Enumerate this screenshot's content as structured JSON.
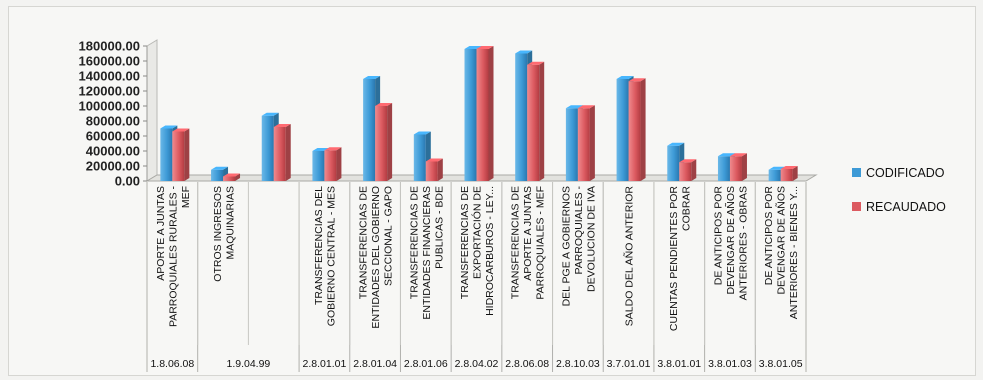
{
  "chart_data": {
    "type": "bar",
    "title": "",
    "xlabel": "",
    "ylabel": "",
    "ylim": [
      0,
      180000
    ],
    "yticks": [
      "0.00",
      "20000.00",
      "40000.00",
      "60000.00",
      "80000.00",
      "100000.00",
      "120000.00",
      "140000.00",
      "160000.00",
      "180000.00"
    ],
    "grid": false,
    "legend": "right",
    "categories": [
      "APORTE A JUNTAS PARROQUIALES RURALES - MEF",
      "OTROS INGRESOS MAQUINARIAS",
      "",
      "TRANSFERENCIAS DEL GOBIERNO CENTRAL - MES",
      "TRANSFERENCIAS DE ENTIDADES DEL GOBIERNO SECCIONAL - GAPO",
      "TRANSFERENCIAS DE ENTIDADES FINANCIERAS PUBLICAS - BDE",
      "TRANSFERENCIAS DE EXPORTACIÓN DE HIDROCARBUROS - LEY...",
      "TRANSFERENCIAS DE APORTE A JUNTAS PARROQUIALES - MEF",
      "DEL PGE A GOBIERNOS PARROQUIALES - DEVOLUCION DE IVA",
      "SALDO DEL AÑO ANTERIOR",
      "CUENTAS PENDIENTES POR COBRAR",
      "DE ANTICIPOS POR DEVENGAR DE AÑOS ANTERIORES - OBRAS",
      "DE ANTICIPOS POR DEVENGAR DE AÑOS ANTERIORES - BIENES Y..."
    ],
    "label_lines": [
      [
        "APORTE A JUNTAS",
        "PARROQUIALES RURALES -",
        "MEF"
      ],
      [
        "OTROS INGRESOS",
        "MAQUINARIAS"
      ],
      [],
      [
        "TRANSFERENCIAS DEL",
        "GOBIERNO CENTRAL - MES"
      ],
      [
        "TRANSFERENCIAS DE",
        "ENTIDADES DEL GOBIERNO",
        "SECCIONAL - GAPO"
      ],
      [
        "TRANSFERENCIAS DE",
        "ENTIDADES FINANCIERAS",
        "PUBLICAS - BDE"
      ],
      [
        "TRANSFERENCIAS DE",
        "EXPORTACIÓN DE",
        "HIDROCARBUROS - LEY..."
      ],
      [
        "TRANSFERENCIAS DE",
        "APORTE A JUNTAS",
        "PARROQUIALES - MEF"
      ],
      [
        "DEL PGE A GOBIERNOS",
        "PARROQUIALES -",
        "DEVOLUCION DE IVA"
      ],
      [
        "SALDO DEL AÑO ANTERIOR"
      ],
      [
        "CUENTAS PENDIENTES POR",
        "COBRAR"
      ],
      [
        "DE ANTICIPOS POR",
        "DEVENGAR DE AÑOS",
        "ANTERIORES - OBRAS"
      ],
      [
        "DE ANTICIPOS POR",
        "DEVENGAR DE AÑOS",
        "ANTERIORES - BIENES Y..."
      ]
    ],
    "codes": [
      {
        "text": "1.8.06.08",
        "from": 0,
        "to": 1
      },
      {
        "text": "1.9.04.99",
        "from": 1,
        "to": 3
      },
      {
        "text": "2.8.01.01",
        "from": 3,
        "to": 4
      },
      {
        "text": "2.8.01.04",
        "from": 4,
        "to": 5
      },
      {
        "text": "2.8.01.06",
        "from": 5,
        "to": 6
      },
      {
        "text": "2.8.04.02",
        "from": 6,
        "to": 7
      },
      {
        "text": "2.8.06.08",
        "from": 7,
        "to": 8
      },
      {
        "text": "2.8.10.03",
        "from": 8,
        "to": 9
      },
      {
        "text": "3.7.01.01",
        "from": 9,
        "to": 10
      },
      {
        "text": "3.8.01.01",
        "from": 10,
        "to": 11
      },
      {
        "text": "3.8.01.03",
        "from": 11,
        "to": 12
      },
      {
        "text": "3.8.01.05",
        "from": 12,
        "to": 13
      }
    ],
    "series": [
      {
        "name": "CODIFICADO",
        "color": "#3d9ad6",
        "values": [
          70000,
          15000,
          87000,
          40000,
          136000,
          62000,
          176000,
          170000,
          97000,
          136000,
          47000,
          33000,
          15000
        ]
      },
      {
        "name": "RECAUDADO",
        "color": "#dc5a60",
        "values": [
          66000,
          6000,
          72000,
          41000,
          100000,
          26000,
          176000,
          155000,
          97000,
          133000,
          25000,
          33000,
          16000
        ]
      }
    ]
  }
}
